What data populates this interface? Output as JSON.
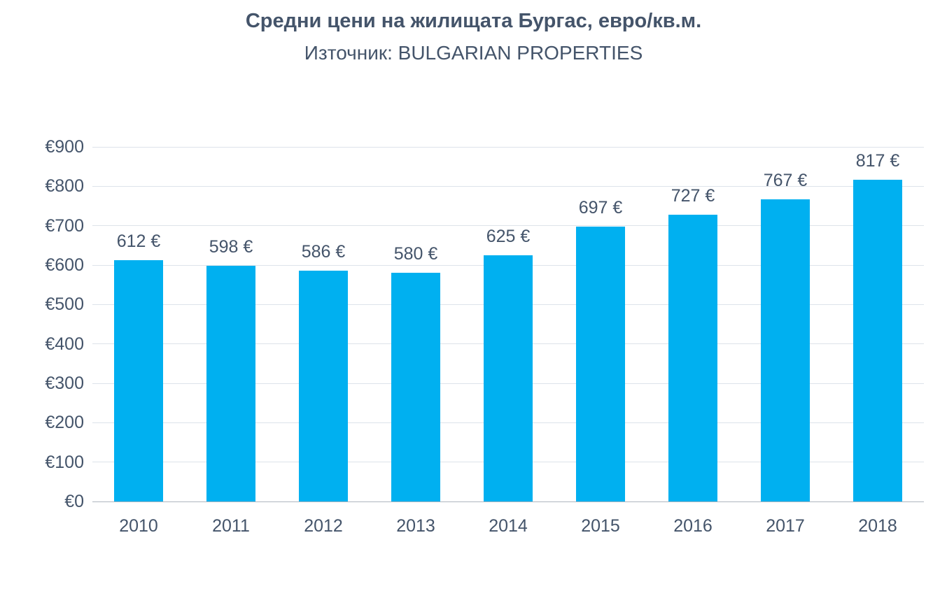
{
  "chart_data": {
    "type": "bar",
    "title": "Средни цени на жилищата Бургас, евро/кв.м.",
    "subtitle": "Източник: BULGARIAN PROPERTIES",
    "categories": [
      "2010",
      "2011",
      "2012",
      "2013",
      "2014",
      "2015",
      "2016",
      "2017",
      "2018"
    ],
    "values": [
      612,
      598,
      586,
      580,
      625,
      697,
      727,
      767,
      817
    ],
    "value_labels": [
      "612 €",
      "598 €",
      "586 €",
      "580 €",
      "625 €",
      "697 €",
      "727 €",
      "767 €",
      "817 €"
    ],
    "xlabel": "",
    "ylabel": "",
    "ylim": [
      0,
      900
    ],
    "ytick_step": 100,
    "ytick_labels": [
      "€0",
      "€100",
      "€200",
      "€300",
      "€400",
      "€500",
      "€600",
      "€700",
      "€800",
      "€900"
    ],
    "grid": "horizontal",
    "legend": "none",
    "bar_color": "#00b0f0",
    "text_color": "#44546a",
    "gridline_color": "#dde3ea",
    "baseline_color": "#aeb6bf"
  }
}
